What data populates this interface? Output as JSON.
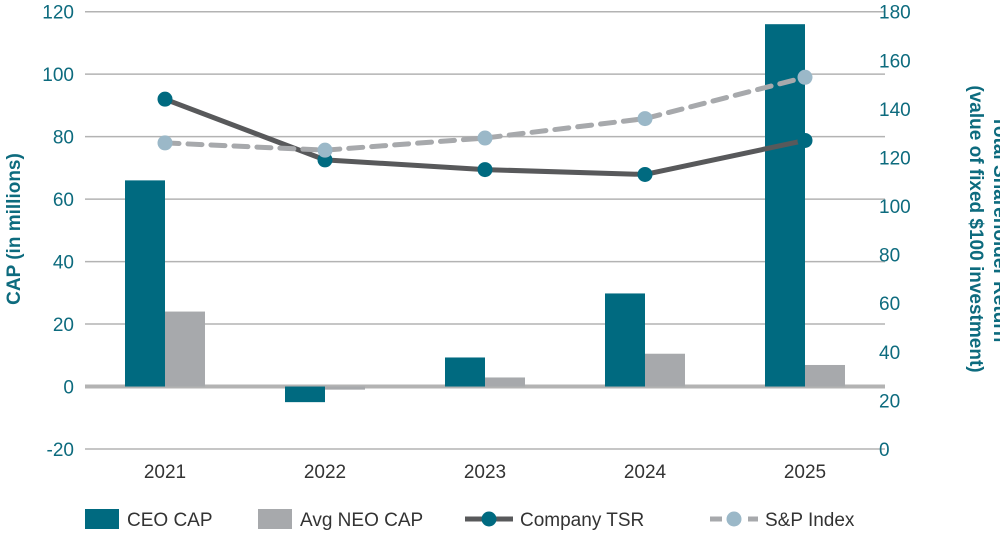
{
  "chart_data": {
    "type": "bar",
    "categories": [
      "2021",
      "2022",
      "2023",
      "2024",
      "2025"
    ],
    "left_axis": {
      "label": "CAP (in millions)",
      "ylim": [
        -20,
        120
      ],
      "ticks": [
        -20,
        0,
        20,
        40,
        60,
        80,
        100,
        120
      ]
    },
    "right_axis": {
      "label_line1": "Total Shareholder Return",
      "label_line2": "(value of fixed $100 investment)",
      "ylim": [
        0,
        180
      ],
      "ticks": [
        0,
        20,
        40,
        60,
        80,
        100,
        120,
        140,
        160,
        180
      ]
    },
    "bar_series": [
      {
        "name": "CEO CAP",
        "color": "#006a80",
        "values": [
          66,
          -5,
          9.3,
          29.8,
          116
        ]
      },
      {
        "name": "Avg NEO CAP",
        "color": "#a7a9ac",
        "values": [
          24,
          -1,
          2.9,
          10.5,
          6.9
        ]
      }
    ],
    "line_series": [
      {
        "name": "Company TSR",
        "axis": "right",
        "color": "#58595b",
        "marker_color": "#006a80",
        "dashed": false,
        "values": [
          144,
          119,
          115,
          113,
          127
        ]
      },
      {
        "name": "S&P Index",
        "axis": "right",
        "color": "#a7a9ac",
        "marker_color": "#9bb8c8",
        "dashed": true,
        "values": [
          126,
          123,
          128,
          136,
          153
        ]
      }
    ],
    "grid": true,
    "legend_position": "bottom"
  }
}
